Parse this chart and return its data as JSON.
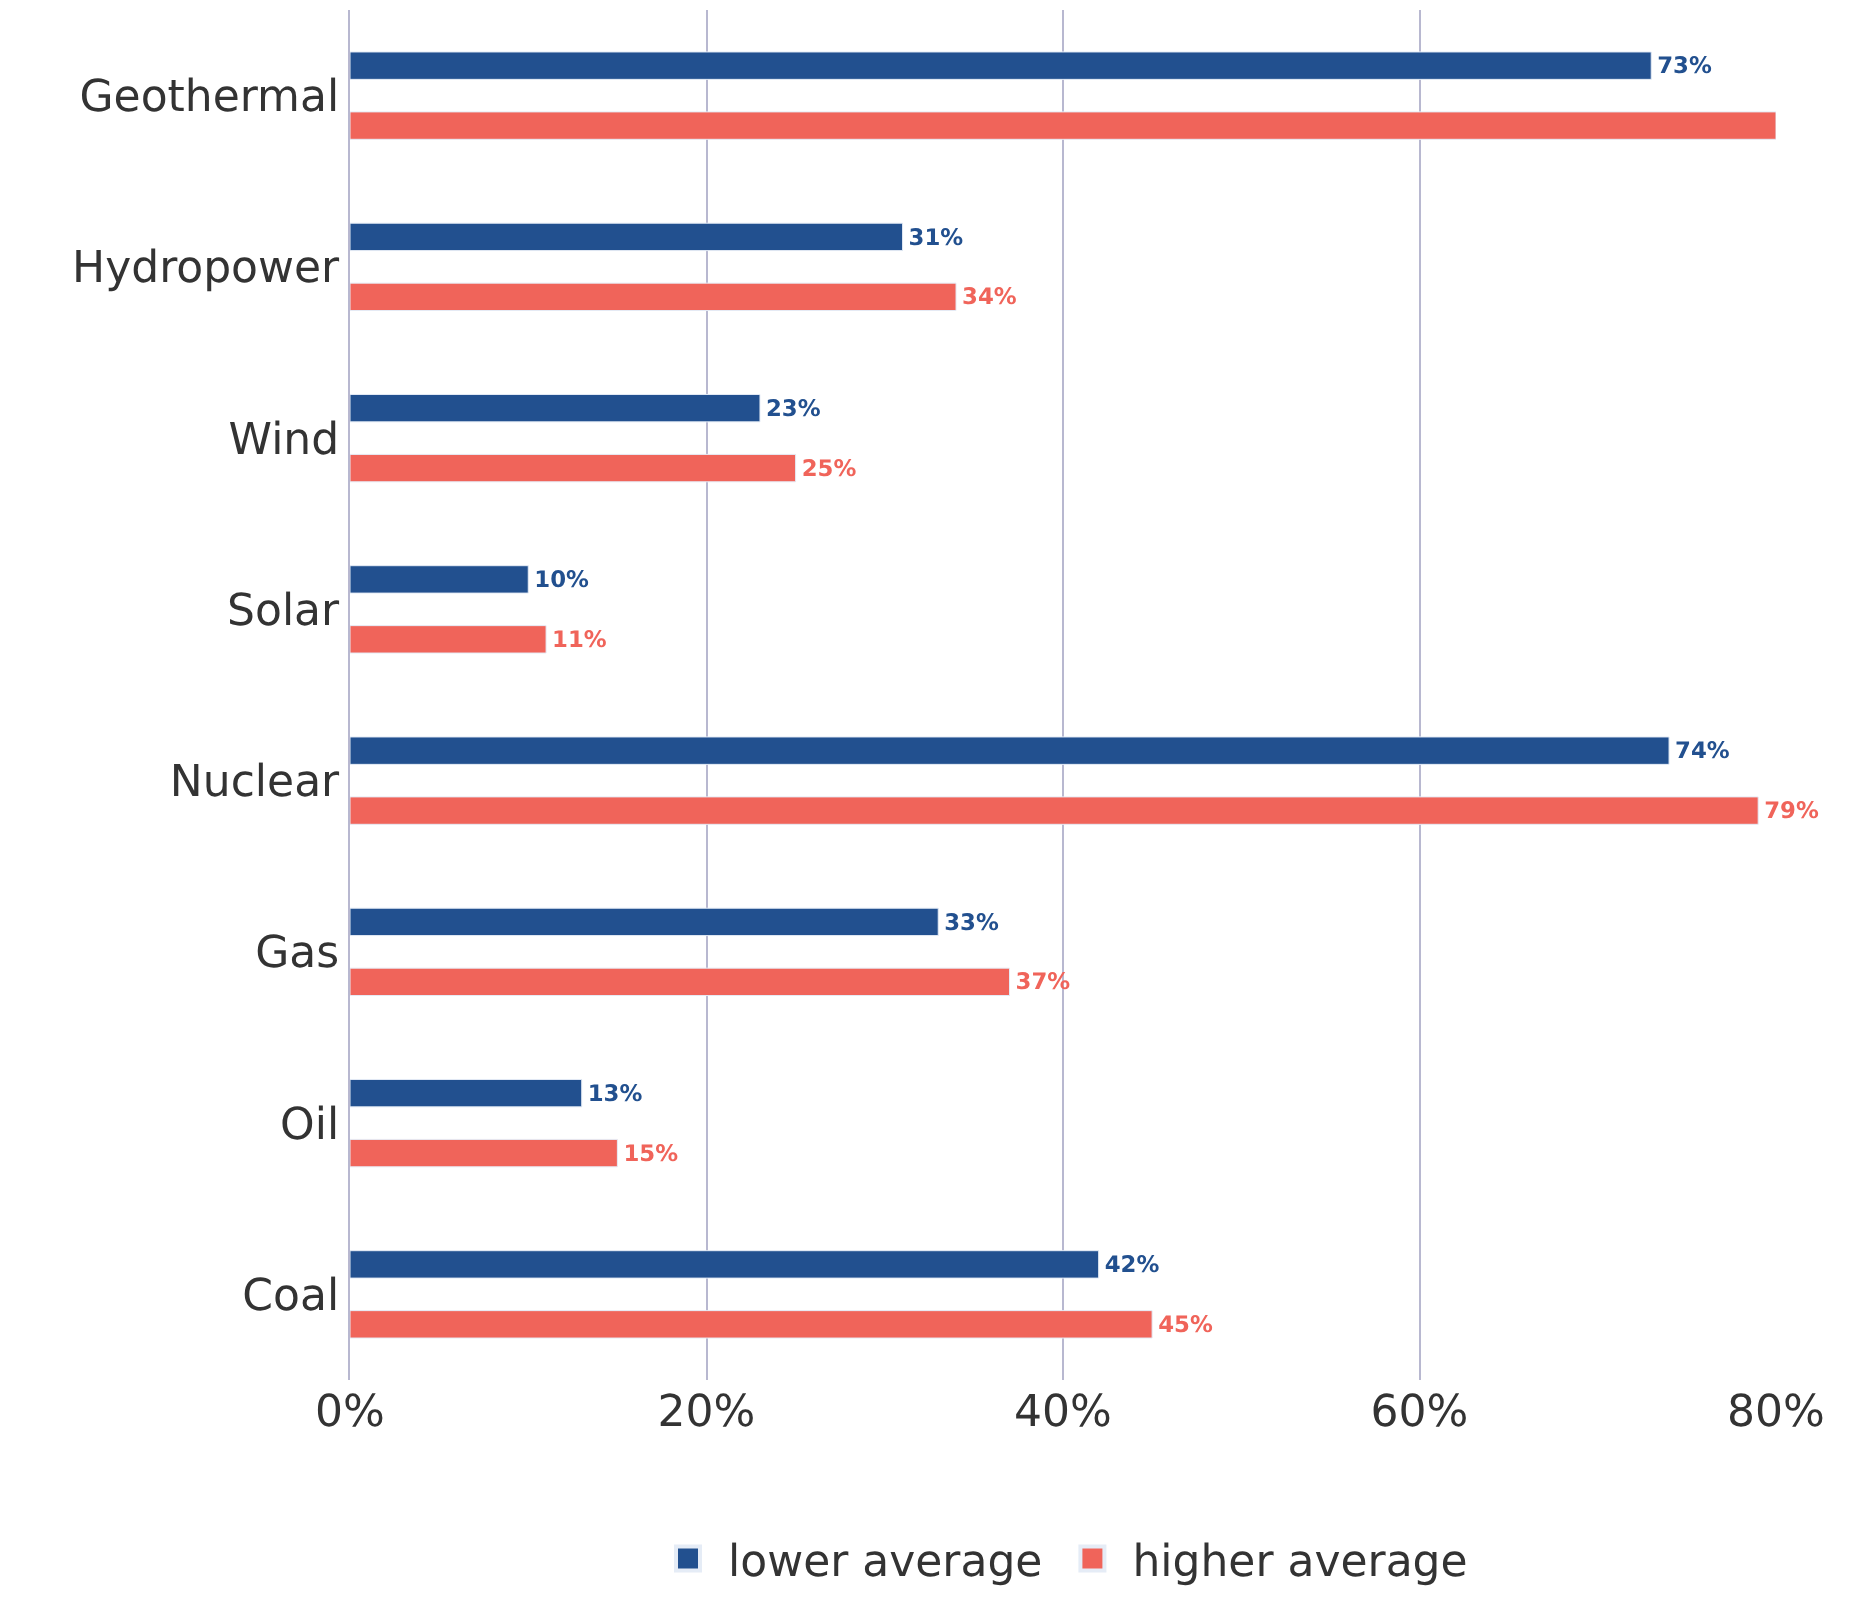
{
  "chart_data": {
    "type": "bar",
    "orientation": "horizontal",
    "categories": [
      "Geothermal",
      "Hydropower",
      "Wind",
      "Solar",
      "Nuclear",
      "Gas",
      "Oil",
      "Coal"
    ],
    "series": [
      {
        "name": "lower average",
        "color": "#22508f",
        "values": [
          73,
          31,
          23,
          10,
          74,
          33,
          13,
          42
        ],
        "value_labels": [
          "73%",
          "31%",
          "23%",
          "10%",
          "74%",
          "33%",
          "13%",
          "42%"
        ]
      },
      {
        "name": "higher average",
        "color": "#f0645a",
        "values": [
          80,
          34,
          25,
          11,
          79,
          37,
          15,
          45
        ],
        "value_labels": [
          null,
          "34%",
          "25%",
          "11%",
          "79%",
          "37%",
          "15%",
          "45%"
        ]
      }
    ],
    "xlim": [
      0,
      80
    ],
    "xticks": [
      {
        "value": 0,
        "label": "0%"
      },
      {
        "value": 20,
        "label": "20%"
      },
      {
        "value": 40,
        "label": "40%"
      },
      {
        "value": 60,
        "label": "60%"
      },
      {
        "value": 80,
        "label": "80%"
      }
    ],
    "grid": "x",
    "legend": "bottom"
  }
}
